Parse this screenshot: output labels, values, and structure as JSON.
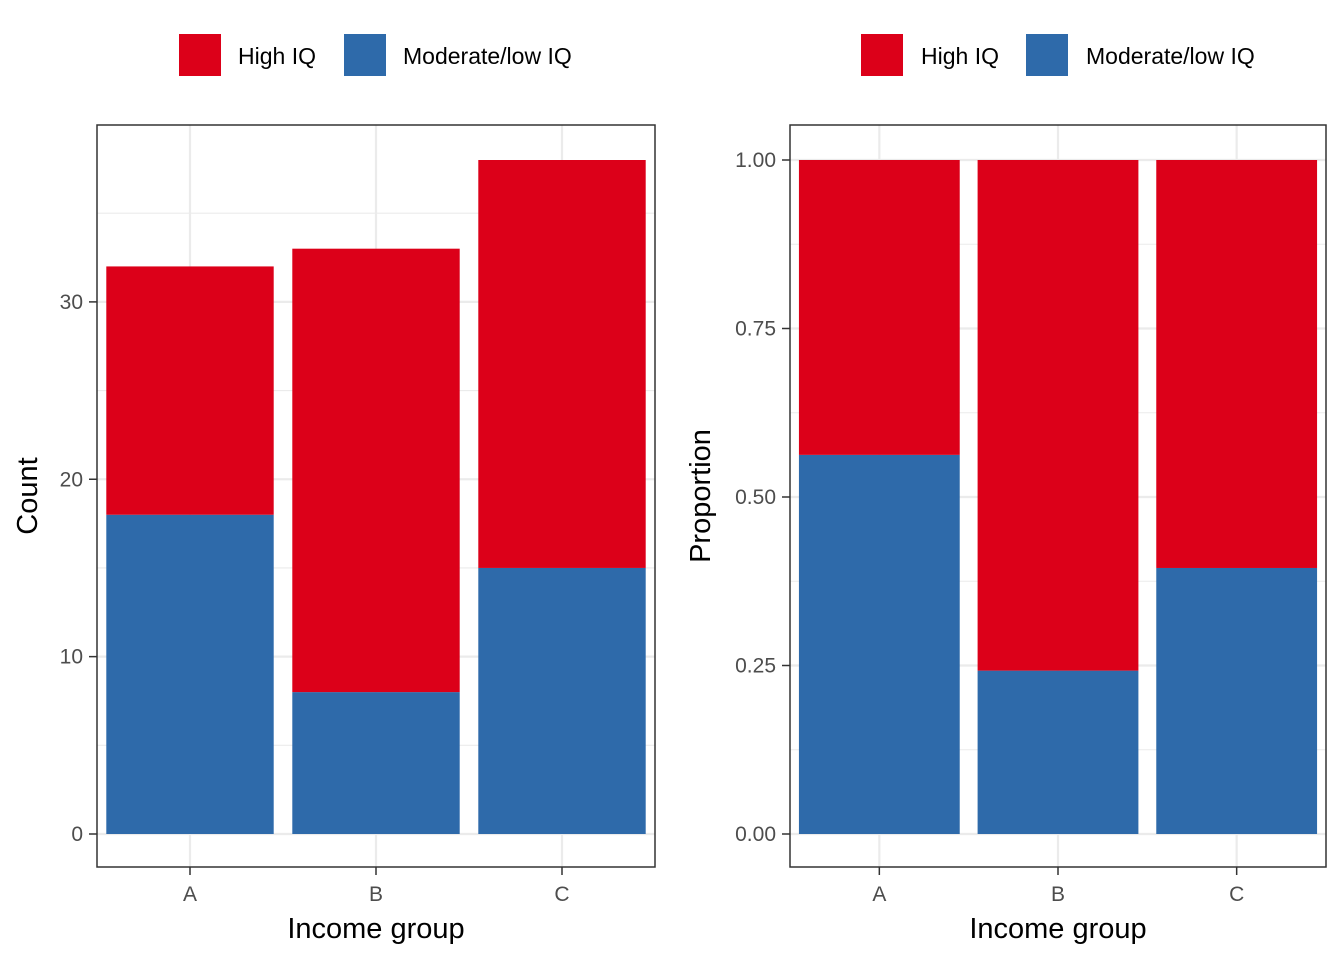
{
  "colors": {
    "high": "#DC0019",
    "low": "#2E6AAA"
  },
  "chart_data": [
    {
      "type": "bar",
      "stacked": true,
      "categories": [
        "A",
        "B",
        "C"
      ],
      "series": [
        {
          "name": "Moderate/low IQ",
          "key": "low",
          "values": [
            18,
            8,
            15
          ]
        },
        {
          "name": "High IQ",
          "key": "high",
          "values": [
            14,
            25,
            23
          ]
        }
      ],
      "legend": [
        "High IQ",
        "Moderate/low IQ"
      ],
      "legend_position": "top",
      "xlabel": "Income group",
      "ylabel": "Count",
      "ylim": [
        0,
        38
      ],
      "yticks": [
        0,
        10,
        20,
        30
      ],
      "ytick_labels": [
        "0",
        "10",
        "20",
        "30"
      ],
      "grid": true
    },
    {
      "type": "bar",
      "stacked": true,
      "categories": [
        "A",
        "B",
        "C"
      ],
      "series": [
        {
          "name": "Moderate/low IQ",
          "key": "low",
          "values": [
            0.5625,
            0.2424,
            0.3947
          ]
        },
        {
          "name": "High IQ",
          "key": "high",
          "values": [
            0.4375,
            0.7576,
            0.6053
          ]
        }
      ],
      "legend": [
        "High IQ",
        "Moderate/low IQ"
      ],
      "legend_position": "top",
      "xlabel": "Income group",
      "ylabel": "Proportion",
      "ylim": [
        0,
        1
      ],
      "yticks": [
        0,
        0.25,
        0.5,
        0.75,
        1
      ],
      "ytick_labels": [
        "0.00",
        "0.25",
        "0.50",
        "0.75",
        "1.00"
      ],
      "grid": true
    }
  ]
}
